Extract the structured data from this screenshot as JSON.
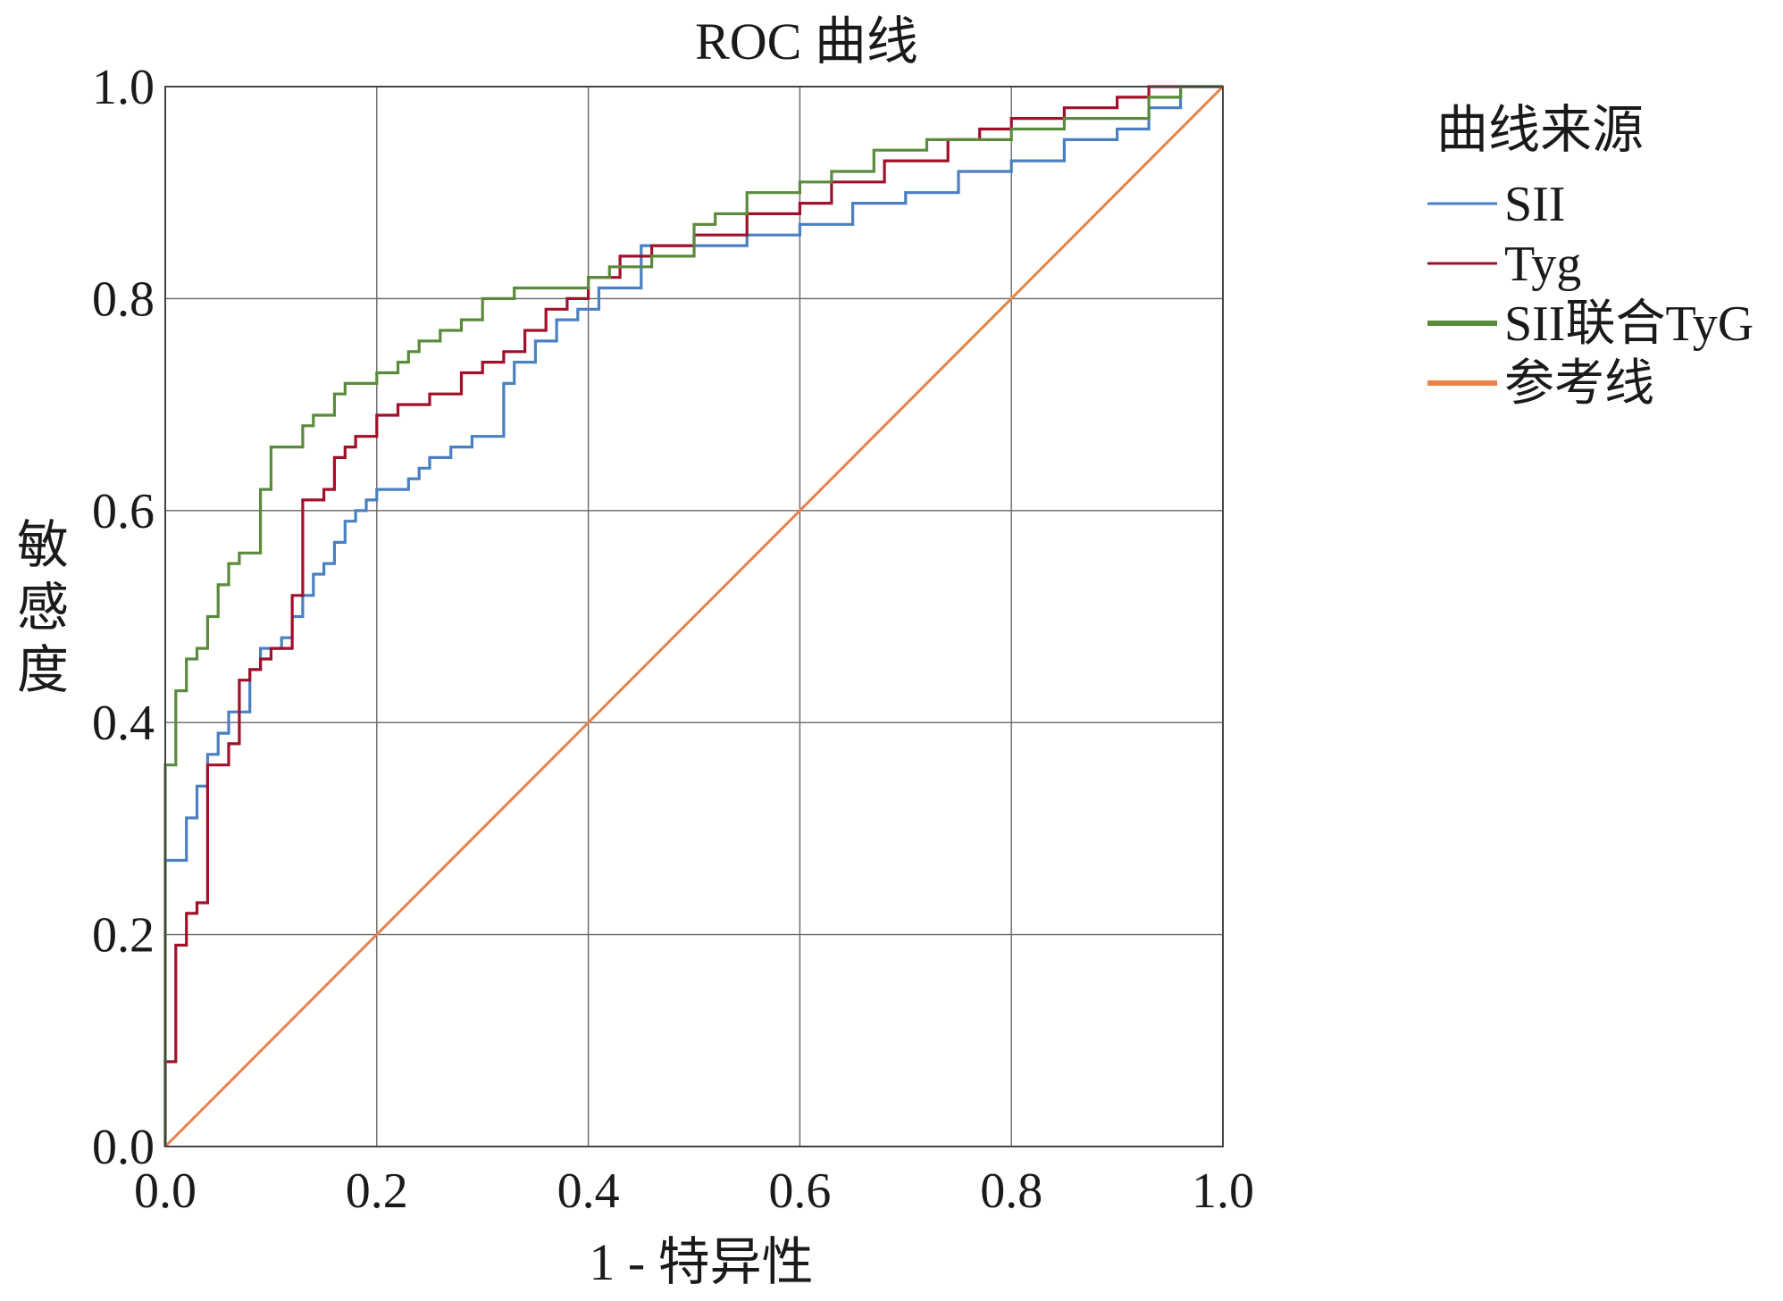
{
  "chart_data": {
    "type": "line",
    "title": "ROC 曲线",
    "xlabel": "1 - 特异性",
    "ylabel": "敏感度",
    "xlim": [
      0,
      1
    ],
    "ylim": [
      0,
      1
    ],
    "x_ticks": [
      "0.0",
      "0.2",
      "0.4",
      "0.6",
      "0.8",
      "1.0"
    ],
    "y_ticks": [
      "0.0",
      "0.2",
      "0.4",
      "0.6",
      "0.8",
      "1.0"
    ],
    "grid": true,
    "legend": {
      "title": "曲线来源",
      "position": "top-right outside"
    },
    "series": [
      {
        "name": "SII",
        "color": "#4a7fc1",
        "x": [
          0.0,
          0.0,
          0.005,
          0.02,
          0.02,
          0.03,
          0.03,
          0.04,
          0.04,
          0.05,
          0.05,
          0.06,
          0.06,
          0.08,
          0.08,
          0.09,
          0.09,
          0.11,
          0.11,
          0.12,
          0.12,
          0.13,
          0.13,
          0.14,
          0.14,
          0.15,
          0.15,
          0.16,
          0.16,
          0.17,
          0.17,
          0.18,
          0.18,
          0.19,
          0.19,
          0.2,
          0.2,
          0.23,
          0.23,
          0.24,
          0.24,
          0.25,
          0.25,
          0.27,
          0.27,
          0.29,
          0.29,
          0.32,
          0.32,
          0.33,
          0.33,
          0.35,
          0.35,
          0.37,
          0.37,
          0.39,
          0.39,
          0.41,
          0.41,
          0.45,
          0.45,
          0.5,
          0.5,
          0.55,
          0.55,
          0.6,
          0.6,
          0.65,
          0.65,
          0.7,
          0.7,
          0.75,
          0.75,
          0.8,
          0.8,
          0.85,
          0.85,
          0.9,
          0.9,
          0.93,
          0.93,
          0.96,
          0.96,
          1.0
        ],
        "y": [
          0.0,
          0.27,
          0.27,
          0.27,
          0.31,
          0.31,
          0.34,
          0.34,
          0.37,
          0.37,
          0.39,
          0.39,
          0.41,
          0.41,
          0.45,
          0.45,
          0.47,
          0.47,
          0.48,
          0.48,
          0.5,
          0.5,
          0.52,
          0.52,
          0.54,
          0.54,
          0.55,
          0.55,
          0.57,
          0.57,
          0.59,
          0.59,
          0.6,
          0.6,
          0.61,
          0.61,
          0.62,
          0.62,
          0.63,
          0.63,
          0.64,
          0.64,
          0.65,
          0.65,
          0.66,
          0.66,
          0.67,
          0.67,
          0.72,
          0.72,
          0.74,
          0.74,
          0.76,
          0.76,
          0.78,
          0.78,
          0.79,
          0.79,
          0.81,
          0.81,
          0.85,
          0.85,
          0.85,
          0.85,
          0.86,
          0.86,
          0.87,
          0.87,
          0.89,
          0.89,
          0.9,
          0.9,
          0.92,
          0.92,
          0.93,
          0.93,
          0.95,
          0.95,
          0.96,
          0.96,
          0.98,
          0.98,
          1.0,
          1.0
        ]
      },
      {
        "name": "Tyg",
        "color": "#a0102a",
        "x": [
          0.0,
          0.0,
          0.01,
          0.01,
          0.02,
          0.02,
          0.03,
          0.03,
          0.04,
          0.04,
          0.06,
          0.06,
          0.07,
          0.07,
          0.08,
          0.08,
          0.09,
          0.09,
          0.1,
          0.1,
          0.12,
          0.12,
          0.13,
          0.13,
          0.15,
          0.15,
          0.16,
          0.16,
          0.17,
          0.17,
          0.18,
          0.18,
          0.2,
          0.2,
          0.22,
          0.22,
          0.25,
          0.25,
          0.28,
          0.28,
          0.3,
          0.3,
          0.32,
          0.32,
          0.34,
          0.34,
          0.36,
          0.36,
          0.38,
          0.38,
          0.4,
          0.4,
          0.43,
          0.43,
          0.46,
          0.46,
          0.5,
          0.5,
          0.55,
          0.55,
          0.6,
          0.6,
          0.63,
          0.63,
          0.68,
          0.68,
          0.74,
          0.74,
          0.77,
          0.77,
          0.8,
          0.8,
          0.85,
          0.85,
          0.9,
          0.9,
          0.93,
          0.93,
          0.96,
          0.96,
          1.0
        ],
        "y": [
          0.0,
          0.08,
          0.08,
          0.19,
          0.19,
          0.22,
          0.22,
          0.23,
          0.23,
          0.36,
          0.36,
          0.38,
          0.38,
          0.44,
          0.44,
          0.45,
          0.45,
          0.46,
          0.46,
          0.47,
          0.47,
          0.52,
          0.52,
          0.61,
          0.61,
          0.62,
          0.62,
          0.65,
          0.65,
          0.66,
          0.66,
          0.67,
          0.67,
          0.69,
          0.69,
          0.7,
          0.7,
          0.71,
          0.71,
          0.73,
          0.73,
          0.74,
          0.74,
          0.75,
          0.75,
          0.77,
          0.77,
          0.79,
          0.79,
          0.8,
          0.8,
          0.82,
          0.82,
          0.84,
          0.84,
          0.85,
          0.85,
          0.86,
          0.86,
          0.88,
          0.88,
          0.89,
          0.89,
          0.91,
          0.91,
          0.93,
          0.93,
          0.95,
          0.95,
          0.96,
          0.96,
          0.97,
          0.97,
          0.98,
          0.98,
          0.99,
          0.99,
          1.0,
          1.0,
          1.0,
          1.0
        ]
      },
      {
        "name": "SII联合TyG",
        "color": "#5a8a3c",
        "x": [
          0.0,
          0.0,
          0.01,
          0.01,
          0.02,
          0.02,
          0.03,
          0.03,
          0.04,
          0.04,
          0.05,
          0.05,
          0.06,
          0.06,
          0.07,
          0.07,
          0.09,
          0.09,
          0.1,
          0.1,
          0.13,
          0.13,
          0.14,
          0.14,
          0.16,
          0.16,
          0.17,
          0.17,
          0.2,
          0.2,
          0.22,
          0.22,
          0.23,
          0.23,
          0.24,
          0.24,
          0.26,
          0.26,
          0.28,
          0.28,
          0.3,
          0.3,
          0.33,
          0.33,
          0.35,
          0.35,
          0.4,
          0.4,
          0.42,
          0.42,
          0.46,
          0.46,
          0.5,
          0.5,
          0.52,
          0.52,
          0.55,
          0.55,
          0.6,
          0.6,
          0.63,
          0.63,
          0.67,
          0.67,
          0.72,
          0.72,
          0.8,
          0.8,
          0.85,
          0.85,
          0.93,
          0.93,
          0.96,
          0.96,
          1.0
        ],
        "y": [
          0.0,
          0.36,
          0.36,
          0.43,
          0.43,
          0.46,
          0.46,
          0.47,
          0.47,
          0.5,
          0.5,
          0.53,
          0.53,
          0.55,
          0.55,
          0.56,
          0.56,
          0.62,
          0.62,
          0.66,
          0.66,
          0.68,
          0.68,
          0.69,
          0.69,
          0.71,
          0.71,
          0.72,
          0.72,
          0.73,
          0.73,
          0.74,
          0.74,
          0.75,
          0.75,
          0.76,
          0.76,
          0.77,
          0.77,
          0.78,
          0.78,
          0.8,
          0.8,
          0.81,
          0.81,
          0.81,
          0.81,
          0.82,
          0.82,
          0.83,
          0.83,
          0.84,
          0.84,
          0.87,
          0.87,
          0.88,
          0.88,
          0.9,
          0.9,
          0.91,
          0.91,
          0.92,
          0.92,
          0.94,
          0.94,
          0.95,
          0.95,
          0.96,
          0.96,
          0.97,
          0.97,
          0.99,
          0.99,
          1.0,
          1.0
        ]
      },
      {
        "name": "参考线",
        "color": "#e8824a",
        "x": [
          0.0,
          1.0
        ],
        "y": [
          0.0,
          1.0
        ]
      }
    ]
  }
}
